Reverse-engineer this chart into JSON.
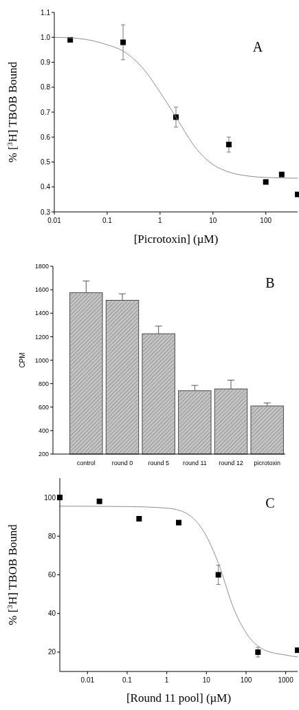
{
  "chart_data": [
    {
      "type": "scatter",
      "xlabel": "[Picrotoxin] (µM)",
      "ylabel": "% [$^{3}$H] TBOB Bound",
      "log": "x",
      "marker": "square",
      "annotations": [
        "A"
      ],
      "xlim": [
        0.01,
        400
      ],
      "xticks": [
        0.01,
        0.1,
        1,
        10,
        100
      ],
      "ylim": [
        0.3,
        1.1
      ],
      "yticks": [
        0.3,
        0.4,
        0.5,
        0.6,
        0.7,
        0.8,
        0.9,
        {
          "value": 1,
          "label": "1.0"
        },
        1.1
      ],
      "series": [
        {
          "type": "scatter",
          "color": "#000000",
          "x": [
            0.02,
            0.2,
            2,
            20,
            100,
            200,
            400
          ],
          "values": [
            0.99,
            0.98,
            0.68,
            0.57,
            0.42,
            0.45,
            0.37
          ],
          "errors": [
            null,
            0.07,
            0.04,
            0.03,
            null,
            null,
            null
          ]
        },
        {
          "type": "line",
          "color": "#8c8c8c",
          "marker": "none",
          "line_style": "solid",
          "x": [
            0.01,
            0.03,
            0.1,
            0.2,
            0.5,
            1,
            2,
            5,
            10,
            20,
            50,
            100,
            400
          ],
          "values": [
            1.0,
            0.995,
            0.97,
            0.945,
            0.87,
            0.78,
            0.68,
            0.55,
            0.49,
            0.46,
            0.443,
            0.438,
            0.435
          ]
        }
      ]
    },
    {
      "type": "bar",
      "ylabel": "CPM",
      "annotations": [
        "B"
      ],
      "color": "#c4c4c4",
      "categories": [
        "control",
        "round 0",
        "round 5",
        "round 11",
        "round 12",
        "picrotoxin"
      ],
      "values": [
        1575,
        1510,
        1225,
        740,
        755,
        610
      ],
      "errors": [
        [
          1575,
          1675
        ],
        [
          1510,
          1565
        ],
        [
          1225,
          1290
        ],
        [
          740,
          785
        ],
        [
          755,
          830
        ],
        [
          610,
          635
        ]
      ],
      "ylim": [
        200,
        1800
      ],
      "yticks": [
        200,
        400,
        600,
        800,
        1000,
        1200,
        1400,
        1600,
        1800
      ]
    },
    {
      "type": "scatter",
      "xlabel": "[Round 11 pool] (µM)",
      "ylabel": "% [$^{3}$H] TBOB Bound",
      "log": "x",
      "marker": "square",
      "annotations": [
        "C"
      ],
      "xlim": [
        0.002,
        2000
      ],
      "xticks": [
        0.01,
        0.1,
        1,
        10,
        100,
        1000
      ],
      "ylim": [
        10,
        110
      ],
      "yticks": [
        20,
        40,
        60,
        80,
        100
      ],
      "series": [
        {
          "type": "scatter",
          "color": "#000000",
          "x": [
            0.002,
            0.02,
            0.2,
            2,
            20,
            200,
            2000
          ],
          "values": [
            100,
            98,
            89,
            87,
            60,
            20,
            21
          ],
          "errors": [
            null,
            null,
            null,
            null,
            5,
            2.5,
            null
          ]
        },
        {
          "type": "line",
          "color": "#8c8c8c",
          "marker": "none",
          "line_style": "solid",
          "x": [
            0.002,
            0.1,
            1,
            3,
            10,
            20,
            50,
            100,
            300,
            1000,
            2000
          ],
          "values": [
            95.5,
            95.3,
            94.5,
            92,
            80,
            66,
            42,
            30,
            21,
            18.5,
            17.5
          ]
        }
      ]
    }
  ]
}
